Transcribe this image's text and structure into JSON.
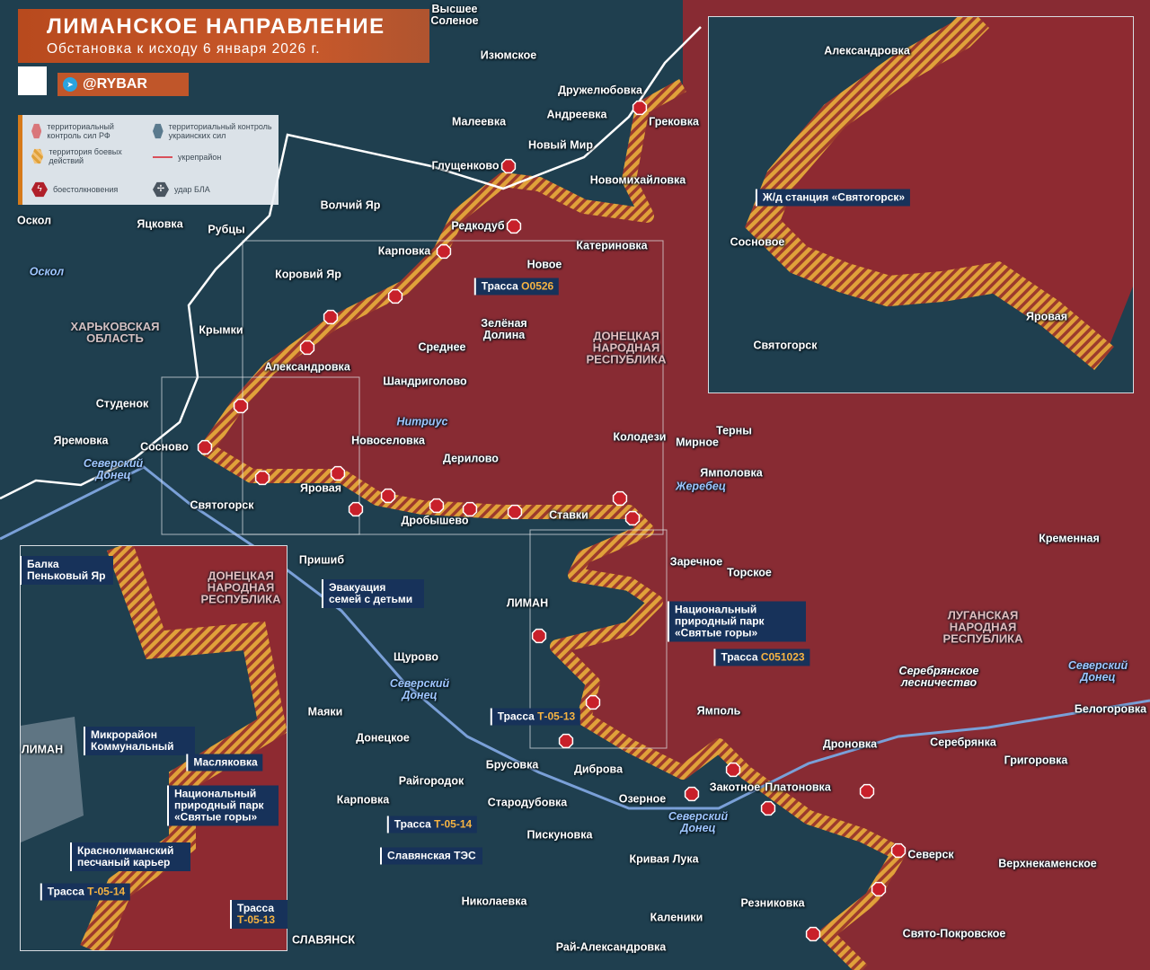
{
  "header": {
    "title": "ЛИМАНСКОЕ НАПРАВЛЕНИЕ",
    "subtitle": "Обстановка к исходу 6 января 2026 г.",
    "brand": "@RYBAR"
  },
  "legend": {
    "rf_control": "территориальный контроль сил РФ",
    "ua_control": "территориальный контроль украинских сил",
    "combat_zone": "территория боевых действий",
    "fortified": "укрепрайон",
    "clashes": "боестолкновения",
    "drone_strike": "удар БЛА"
  },
  "colors": {
    "rf": "#8e2a31",
    "ua": "#1f3f4f",
    "combat": "#e0a13a",
    "accent": "#c8582a",
    "box": "#17325a",
    "code": "#f5b342",
    "river": "#9fc6ff"
  },
  "places": [
    "Высшее Соленое",
    "Изюмское",
    "Дружелюбовка",
    "Малеевка",
    "Андреевка",
    "Грековка",
    "Новый Мир",
    "Глущенково",
    "Новомихайловка",
    "Волчий Яр",
    "Оскол",
    "Яцковка",
    "Рубцы",
    "Редкодуб",
    "Катериновка",
    "Карповка",
    "Новое",
    "Коровий Яр",
    "Зелёная Долина",
    "Крымки",
    "Среднее",
    "Александровка",
    "Шандриголово",
    "Студенок",
    "Колодези",
    "Мирное",
    "Терны",
    "Новоселовка",
    "Яремовка",
    "Сосново",
    "Дерилово",
    "Ямполовка",
    "Яровая",
    "Святогорск",
    "Ставки",
    "Дробышево",
    "Кременная",
    "Пришиб",
    "Заречное",
    "Торское",
    "ЛИМАН",
    "Щурово",
    "Ямполь",
    "Белогоровка",
    "Маяки",
    "Донецкое",
    "Дроновка",
    "Серебрянка",
    "Брусовка",
    "Диброва",
    "Григоровка",
    "Райгородок",
    "Закотное",
    "Платоновка",
    "Озерное",
    "Карповка",
    "Стародубовка",
    "Пискуновка",
    "Северск",
    "Кривая Лука",
    "Верхнекаменское",
    "Николаевка",
    "Резниковка",
    "Каленики",
    "Свято-Покровское",
    "СЛАВЯНСК",
    "Рай-Александровка"
  ],
  "rivers": [
    "Оскол",
    "Нитриус",
    "Северский Донец",
    "Жеребец",
    "Северский Донец",
    "Северский Донец",
    "Северский Донец"
  ],
  "regions": [
    "ХАРЬКОВСКАЯ ОБЛАСТЬ",
    "ДОНЕЦКАЯ НАРОДНАЯ РЕСПУБЛИКА",
    "ЛУГАНСКАЯ НАРОДНАЯ РЕСПУБЛИКА"
  ],
  "forest": "Серебрянское лесничество",
  "callouts": [
    {
      "text": "Трасса ",
      "code": "O0526"
    },
    {
      "text": "Эвакуация семей с детьми",
      "code": ""
    },
    {
      "text": "Национальный природный парк «Святые горы»",
      "code": ""
    },
    {
      "text": "Трасса ",
      "code": "C051023"
    },
    {
      "text": "Трасса ",
      "code": "Т-05-13"
    },
    {
      "text": "Трасса ",
      "code": "Т-05-14"
    },
    {
      "text": "Славянская ТЭС",
      "code": ""
    }
  ],
  "inset_top": {
    "places": [
      "Александровка",
      "Сосновое",
      "Святогорск",
      "Яровая"
    ],
    "callout": "Ж/д станция «Святогорск»"
  },
  "inset_bottom": {
    "places": [
      "ЛИМАН"
    ],
    "region": "ДОНЕЦКАЯ НАРОДНАЯ РЕСПУБЛИКА",
    "callouts": [
      {
        "text": "Балка Пеньковый Яр",
        "code": ""
      },
      {
        "text": "Микрорайон Коммунальный",
        "code": ""
      },
      {
        "text": "Масляковка",
        "code": ""
      },
      {
        "text": "Национальный природный парк «Святые горы»",
        "code": ""
      },
      {
        "text": "Краснолиманский песчаный карьер",
        "code": ""
      },
      {
        "text": "Трасса ",
        "code": "Т-05-14"
      },
      {
        "text": "Трасса ",
        "code": "Т-05-13"
      }
    ]
  }
}
